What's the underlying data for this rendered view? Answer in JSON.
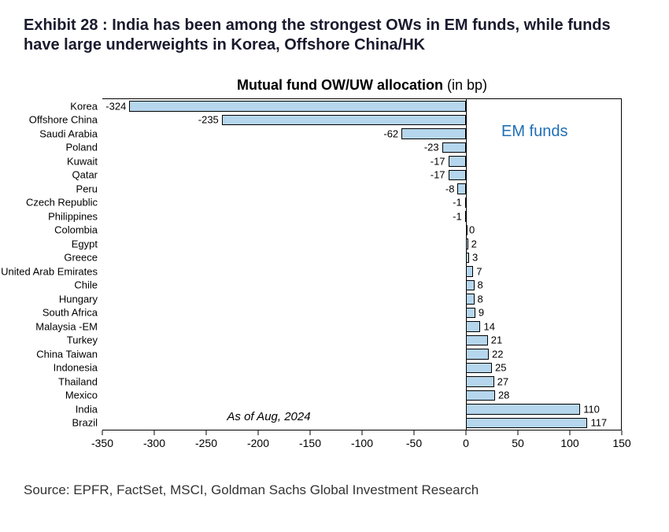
{
  "exhibit": {
    "title": "Exhibit 28 : India has been among the strongest OWs in EM funds, while funds have large underweights in Korea, Offshore China/HK"
  },
  "chart": {
    "type": "bar",
    "title_bold": "Mutual fund OW/UW allocation",
    "title_unit": " (in bp)",
    "xlim_min": -350,
    "xlim_max": 150,
    "xtick_step": 50,
    "xticks": [
      -350,
      -300,
      -250,
      -200,
      -150,
      -100,
      -50,
      0,
      50,
      100,
      150
    ],
    "bar_fill": "#b5d6ed",
    "bar_stroke": "#000000",
    "background": "#ffffff",
    "label_fontsize": 13,
    "tick_fontsize": 14,
    "title_fontsize": 18,
    "rows": [
      {
        "label": "Korea",
        "value": -324
      },
      {
        "label": "Offshore China",
        "value": -235
      },
      {
        "label": "Saudi Arabia",
        "value": -62
      },
      {
        "label": "Poland",
        "value": -23
      },
      {
        "label": "Kuwait",
        "value": -17
      },
      {
        "label": "Qatar",
        "value": -17
      },
      {
        "label": "Peru",
        "value": -8
      },
      {
        "label": "Czech Republic",
        "value": -1
      },
      {
        "label": "Philippines",
        "value": -1
      },
      {
        "label": "Colombia",
        "value": 0
      },
      {
        "label": "Egypt",
        "value": 2
      },
      {
        "label": "Greece",
        "value": 3
      },
      {
        "label": "United Arab Emirates",
        "value": 7
      },
      {
        "label": "Chile",
        "value": 8
      },
      {
        "label": "Hungary",
        "value": 8
      },
      {
        "label": "South Africa",
        "value": 9
      },
      {
        "label": "Malaysia -EM",
        "value": 14
      },
      {
        "label": "Turkey",
        "value": 21
      },
      {
        "label": "China Taiwan",
        "value": 22
      },
      {
        "label": "Indonesia",
        "value": 25
      },
      {
        "label": "Thailand",
        "value": 27
      },
      {
        "label": "Mexico",
        "value": 28
      },
      {
        "label": "India",
        "value": 110
      },
      {
        "label": "Brazil",
        "value": 117
      }
    ],
    "annotations": {
      "em_funds": {
        "text": "EM funds",
        "color": "#1f6fb5",
        "fontsize": 20
      },
      "asof": {
        "text": "As of Aug, 2024",
        "color": "#000000",
        "fontsize": 15,
        "style": "italic"
      }
    }
  },
  "source": "Source: EPFR, FactSet, MSCI, Goldman Sachs Global Investment Research"
}
